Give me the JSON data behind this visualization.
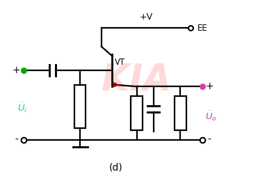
{
  "bg_color": "#ffffff",
  "line_color": "#000000",
  "title": "(d)",
  "transistor_label": "VT",
  "supply_label": "+V",
  "ee_label": "EE",
  "ui_color": "#2ecc71",
  "uo_color": "#cc44aa",
  "dot_green": "#00aa00",
  "dot_magenta": "#cc44aa",
  "arrow_color": "#cc0000",
  "watermark_color": "#ffbbbb",
  "figsize": [
    3.71,
    2.7
  ],
  "dpi": 100,
  "lw": 1.6,
  "lw_body": 2.0
}
